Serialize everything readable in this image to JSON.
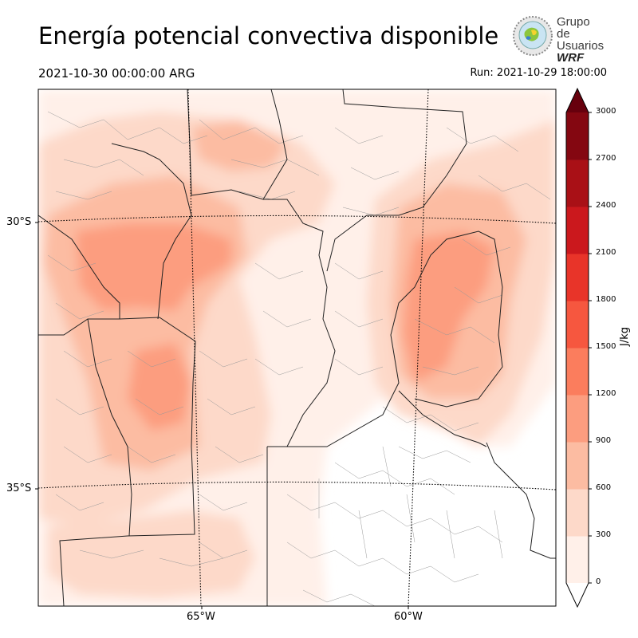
{
  "header": {
    "title": "Energía potencial convectiva disponible",
    "valid_time": "2021-10-30 00:00:00 ARG",
    "run_time": "Run: 2021-10-29 18:00:00"
  },
  "logo": {
    "line1": "Grupo de",
    "line2": "Usuarios",
    "line3": "WRF"
  },
  "map": {
    "lat_labels": [
      "30°S",
      "35°S"
    ],
    "lon_labels": [
      "65°W",
      "60°W"
    ],
    "fill_colors": [
      "#fff0e9",
      "#fdd9c9",
      "#fcbca2",
      "#fc9d7f",
      "#fb7d5d",
      "#f6573f",
      "#e83429",
      "#cb181d",
      "#a91016",
      "#840711",
      "#67000d"
    ]
  },
  "colorbar": {
    "unit": "J/kg",
    "ticks": [
      "0",
      "300",
      "600",
      "900",
      "1200",
      "1500",
      "1800",
      "2100",
      "2400",
      "2700",
      "3000"
    ],
    "colors": [
      "#fff0e9",
      "#fdd9c9",
      "#fcbca2",
      "#fc9d7f",
      "#fb7d5d",
      "#f6573f",
      "#e83429",
      "#cb181d",
      "#a91016",
      "#840711"
    ],
    "over_color": "#67000d",
    "under_color": "#ffffff"
  }
}
